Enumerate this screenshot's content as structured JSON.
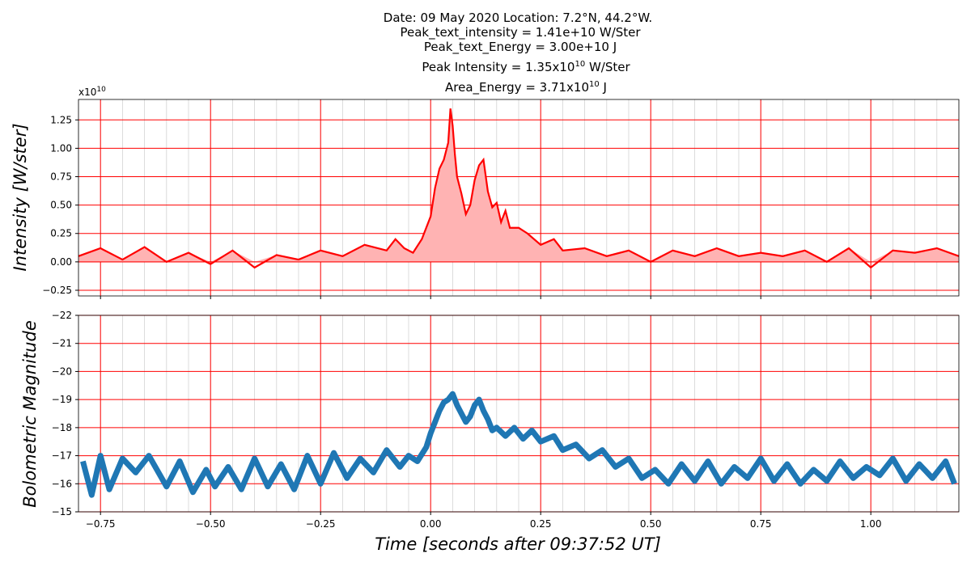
{
  "titles": {
    "line1": "Date: 09 May 2020      Location: 7.2°N, 44.2°W.",
    "line2": "Peak_text_intensity = 1.41e+10 W/Ster",
    "line3": "Peak_text_Energy = 3.00e+10 J",
    "line4_pre": "Peak Intensity = 1.35x10",
    "line4_exp": "10",
    "line4_post": " W/Ster",
    "line5_pre": "Area_Energy = 3.71x10",
    "line5_exp": "10",
    "line5_post": " J"
  },
  "colors": {
    "intensity_line": "#ff0000",
    "intensity_fill": "#ffb3b3",
    "magnitude_line": "#1f77b4",
    "major_grid": "#ff0000",
    "minor_grid": "#d3d3d3"
  },
  "chart_data": [
    {
      "type": "area",
      "ylabel": "Intensity [W/ster]",
      "y_offset_label": {
        "base": "x10",
        "exp": "10"
      },
      "xlim": [
        -0.8,
        1.2
      ],
      "ylim": [
        -0.3,
        1.43
      ],
      "y_ticks": [
        "−0.25",
        "0.00",
        "0.25",
        "0.50",
        "0.75",
        "1.00",
        "1.25"
      ],
      "y_tick_values": [
        -0.25,
        0,
        0.25,
        0.5,
        0.75,
        1.0,
        1.25
      ],
      "x_major": [
        -0.75,
        -0.5,
        -0.25,
        0,
        0.25,
        0.5,
        0.75,
        1.0
      ],
      "grid": true,
      "x": [
        -0.8,
        -0.75,
        -0.7,
        -0.65,
        -0.6,
        -0.55,
        -0.5,
        -0.45,
        -0.4,
        -0.35,
        -0.3,
        -0.25,
        -0.2,
        -0.15,
        -0.1,
        -0.08,
        -0.06,
        -0.04,
        -0.02,
        0.0,
        0.01,
        0.02,
        0.03,
        0.04,
        0.045,
        0.05,
        0.055,
        0.06,
        0.07,
        0.08,
        0.09,
        0.1,
        0.11,
        0.12,
        0.13,
        0.14,
        0.15,
        0.16,
        0.17,
        0.18,
        0.2,
        0.22,
        0.25,
        0.28,
        0.3,
        0.35,
        0.4,
        0.45,
        0.5,
        0.55,
        0.6,
        0.65,
        0.7,
        0.75,
        0.8,
        0.85,
        0.9,
        0.95,
        1.0,
        1.05,
        1.1,
        1.15,
        1.2
      ],
      "y": [
        0.05,
        0.12,
        0.02,
        0.13,
        0.0,
        0.08,
        -0.02,
        0.1,
        -0.05,
        0.06,
        0.02,
        0.1,
        0.05,
        0.15,
        0.1,
        0.2,
        0.12,
        0.08,
        0.2,
        0.4,
        0.65,
        0.82,
        0.9,
        1.05,
        1.35,
        1.2,
        0.95,
        0.75,
        0.6,
        0.42,
        0.5,
        0.72,
        0.85,
        0.9,
        0.62,
        0.48,
        0.52,
        0.35,
        0.45,
        0.3,
        0.3,
        0.25,
        0.15,
        0.2,
        0.1,
        0.12,
        0.05,
        0.1,
        0.0,
        0.1,
        0.05,
        0.12,
        0.05,
        0.08,
        0.05,
        0.1,
        0.0,
        0.12,
        -0.05,
        0.1,
        0.08,
        0.12,
        0.05
      ]
    },
    {
      "type": "line",
      "ylabel": "Bolometric Magnitude",
      "xlabel": "Time [seconds after 09:37:52 UT]",
      "xlim": [
        -0.8,
        1.2
      ],
      "ylim": [
        -22,
        -15
      ],
      "y_inverted": true,
      "y_ticks": [
        "−22",
        "−21",
        "−20",
        "−19",
        "−18",
        "−17",
        "−16",
        "−15"
      ],
      "y_tick_values": [
        -22,
        -21,
        -20,
        -19,
        -18,
        -17,
        -16,
        -15
      ],
      "x_ticks": [
        "−0.75",
        "−0.50",
        "−0.25",
        "0.00",
        "0.25",
        "0.50",
        "0.75",
        "1.00"
      ],
      "x_tick_values": [
        -0.75,
        -0.5,
        -0.25,
        0,
        0.25,
        0.5,
        0.75,
        1.0
      ],
      "grid": true,
      "x": [
        -0.79,
        -0.77,
        -0.75,
        -0.73,
        -0.7,
        -0.67,
        -0.64,
        -0.6,
        -0.57,
        -0.54,
        -0.51,
        -0.49,
        -0.46,
        -0.43,
        -0.4,
        -0.37,
        -0.34,
        -0.31,
        -0.28,
        -0.25,
        -0.22,
        -0.19,
        -0.16,
        -0.13,
        -0.1,
        -0.07,
        -0.05,
        -0.03,
        -0.01,
        0.0,
        0.01,
        0.02,
        0.03,
        0.04,
        0.05,
        0.06,
        0.07,
        0.08,
        0.09,
        0.1,
        0.11,
        0.12,
        0.13,
        0.14,
        0.15,
        0.17,
        0.19,
        0.21,
        0.23,
        0.25,
        0.28,
        0.3,
        0.33,
        0.36,
        0.39,
        0.42,
        0.45,
        0.48,
        0.51,
        0.54,
        0.57,
        0.6,
        0.63,
        0.66,
        0.69,
        0.72,
        0.75,
        0.78,
        0.81,
        0.84,
        0.87,
        0.9,
        0.93,
        0.96,
        0.99,
        1.02,
        1.05,
        1.08,
        1.11,
        1.14,
        1.17,
        1.19
      ],
      "y": [
        -16.8,
        -15.6,
        -17.0,
        -15.8,
        -16.9,
        -16.4,
        -17.0,
        -15.9,
        -16.8,
        -15.7,
        -16.5,
        -15.9,
        -16.6,
        -15.8,
        -16.9,
        -15.9,
        -16.7,
        -15.8,
        -17.0,
        -16.0,
        -17.1,
        -16.2,
        -16.9,
        -16.4,
        -17.2,
        -16.6,
        -17.0,
        -16.8,
        -17.3,
        -17.8,
        -18.2,
        -18.6,
        -18.9,
        -19.0,
        -19.2,
        -18.8,
        -18.5,
        -18.2,
        -18.4,
        -18.8,
        -19.0,
        -18.6,
        -18.3,
        -17.9,
        -18.0,
        -17.7,
        -18.0,
        -17.6,
        -17.9,
        -17.5,
        -17.7,
        -17.2,
        -17.4,
        -16.9,
        -17.2,
        -16.6,
        -16.9,
        -16.2,
        -16.5,
        -16.0,
        -16.7,
        -16.1,
        -16.8,
        -16.0,
        -16.6,
        -16.2,
        -16.9,
        -16.1,
        -16.7,
        -16.0,
        -16.5,
        -16.1,
        -16.8,
        -16.2,
        -16.6,
        -16.3,
        -16.9,
        -16.1,
        -16.7,
        -16.2,
        -16.8,
        -16.0
      ]
    }
  ]
}
